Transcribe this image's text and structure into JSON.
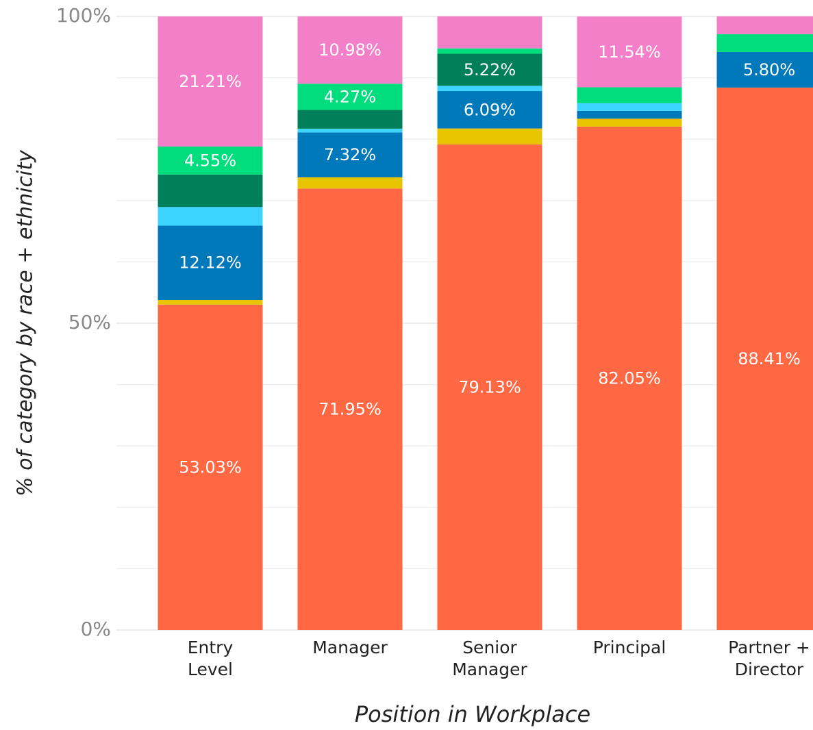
{
  "chart_data": {
    "type": "stacked_bar",
    "y_axis_label": "% of category by race + ethnicity",
    "x_axis_label": "Position in Workplace",
    "categories": [
      "Entry\nLevel",
      "Manager",
      "Senior\nManager",
      "Principal",
      "Partner +\nDirector"
    ],
    "series": [
      {
        "color": "#ff6843",
        "values": [
          53.03,
          71.95,
          79.13,
          82.05,
          88.41
        ],
        "value_labels": [
          "53.03%",
          "71.95%",
          "79.13%",
          "82.05%",
          "88.41%"
        ]
      },
      {
        "color": "#e9c400",
        "values": [
          0.76,
          1.83,
          2.61,
          1.28,
          0
        ],
        "value_labels": [
          null,
          null,
          null,
          null,
          null
        ]
      },
      {
        "color": "#0079bb",
        "values": [
          12.12,
          7.32,
          6.09,
          1.28,
          5.8
        ],
        "value_labels": [
          "12.12%",
          "7.32%",
          "6.09%",
          null,
          "5.80%"
        ]
      },
      {
        "color": "#3dd5ff",
        "values": [
          3.03,
          0.61,
          0.87,
          1.28,
          0
        ],
        "value_labels": [
          null,
          null,
          null,
          null,
          null
        ]
      },
      {
        "color": "#007f59",
        "values": [
          5.3,
          3.05,
          5.22,
          0,
          0
        ],
        "value_labels": [
          null,
          null,
          "5.22%",
          null,
          null
        ]
      },
      {
        "color": "#00dd7d",
        "values": [
          4.55,
          4.27,
          0.87,
          2.56,
          2.9
        ],
        "value_labels": [
          "4.55%",
          "4.27%",
          null,
          null,
          null
        ]
      },
      {
        "color": "#f47fc9",
        "values": [
          21.21,
          10.98,
          5.22,
          11.54,
          2.9
        ],
        "value_labels": [
          "21.21%",
          "10.98%",
          null,
          "11.54%",
          null
        ]
      }
    ],
    "ylim": [
      0,
      100
    ],
    "yticks": [
      {
        "value": 0,
        "label": "0%"
      },
      {
        "value": 50,
        "label": "50%"
      },
      {
        "value": 100,
        "label": "100%"
      }
    ],
    "minor_yticks": [
      10,
      20,
      30,
      40,
      60,
      70,
      80,
      90
    ],
    "grid": true
  }
}
